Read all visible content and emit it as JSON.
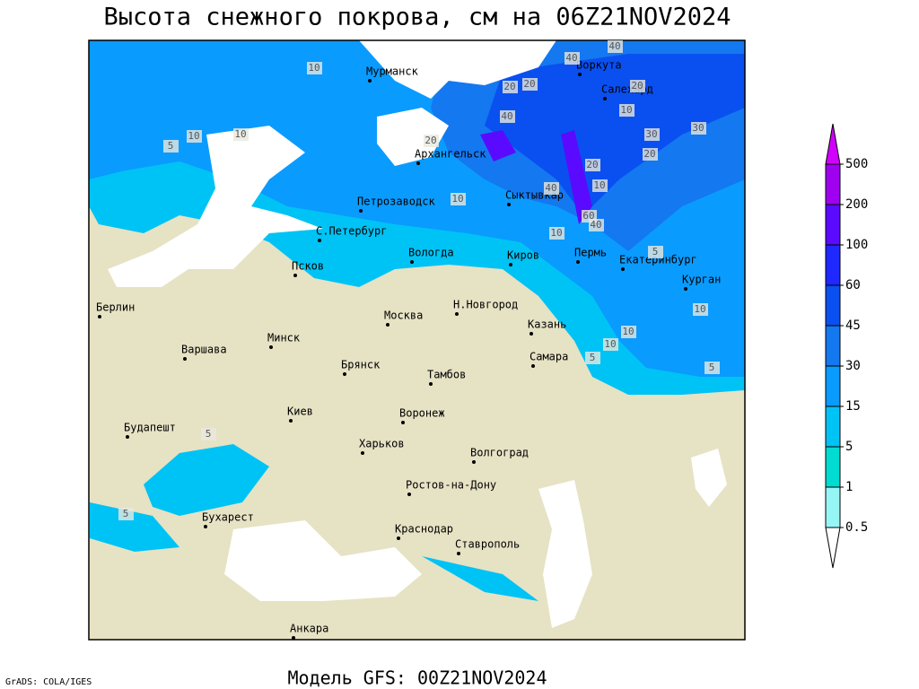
{
  "header": {
    "title": "Высота снежного покрова, см на 06Z21NOV2024"
  },
  "footer": {
    "model": "Модель GFS: 00Z21NOV2024",
    "credit": "GrADS: COLA/IGES"
  },
  "legend": {
    "levels": [
      0.5,
      1,
      5,
      15,
      30,
      45,
      60,
      100,
      200,
      500
    ],
    "colors": [
      "#ffffff",
      "#96f5f5",
      "#00dcd2",
      "#00c3f5",
      "#0a9bff",
      "#1478f0",
      "#0a50f0",
      "#1e28ff",
      "#5a0aff",
      "#a000f0",
      "#d200ff"
    ]
  },
  "cities": [
    "Мурманск",
    "Воркута",
    "Салехард",
    "Архангельск",
    "Петрозаводск",
    "Сыктывкар",
    "С.Петербург",
    "Вологда",
    "Киров",
    "Пермь",
    "Екатеринбург",
    "Курган",
    "Псков",
    "Берлин",
    "Москва",
    "Н.Новгород",
    "Казань",
    "Минск",
    "Варшава",
    "Самара",
    "Брянск",
    "Тамбов",
    "Киев",
    "Воронеж",
    "Будапешт",
    "Харьков",
    "Волгоград",
    "Ростов-на-Дону",
    "Бухарест",
    "Краснодар",
    "Ставрополь",
    "Анкара"
  ],
  "contour_labels": [
    40,
    10,
    20,
    40,
    20,
    40,
    20,
    10,
    5,
    10,
    10,
    20,
    30,
    10,
    30,
    20,
    20,
    40,
    10,
    60,
    40,
    10,
    5,
    10,
    10,
    10,
    5,
    5,
    5,
    5
  ]
}
